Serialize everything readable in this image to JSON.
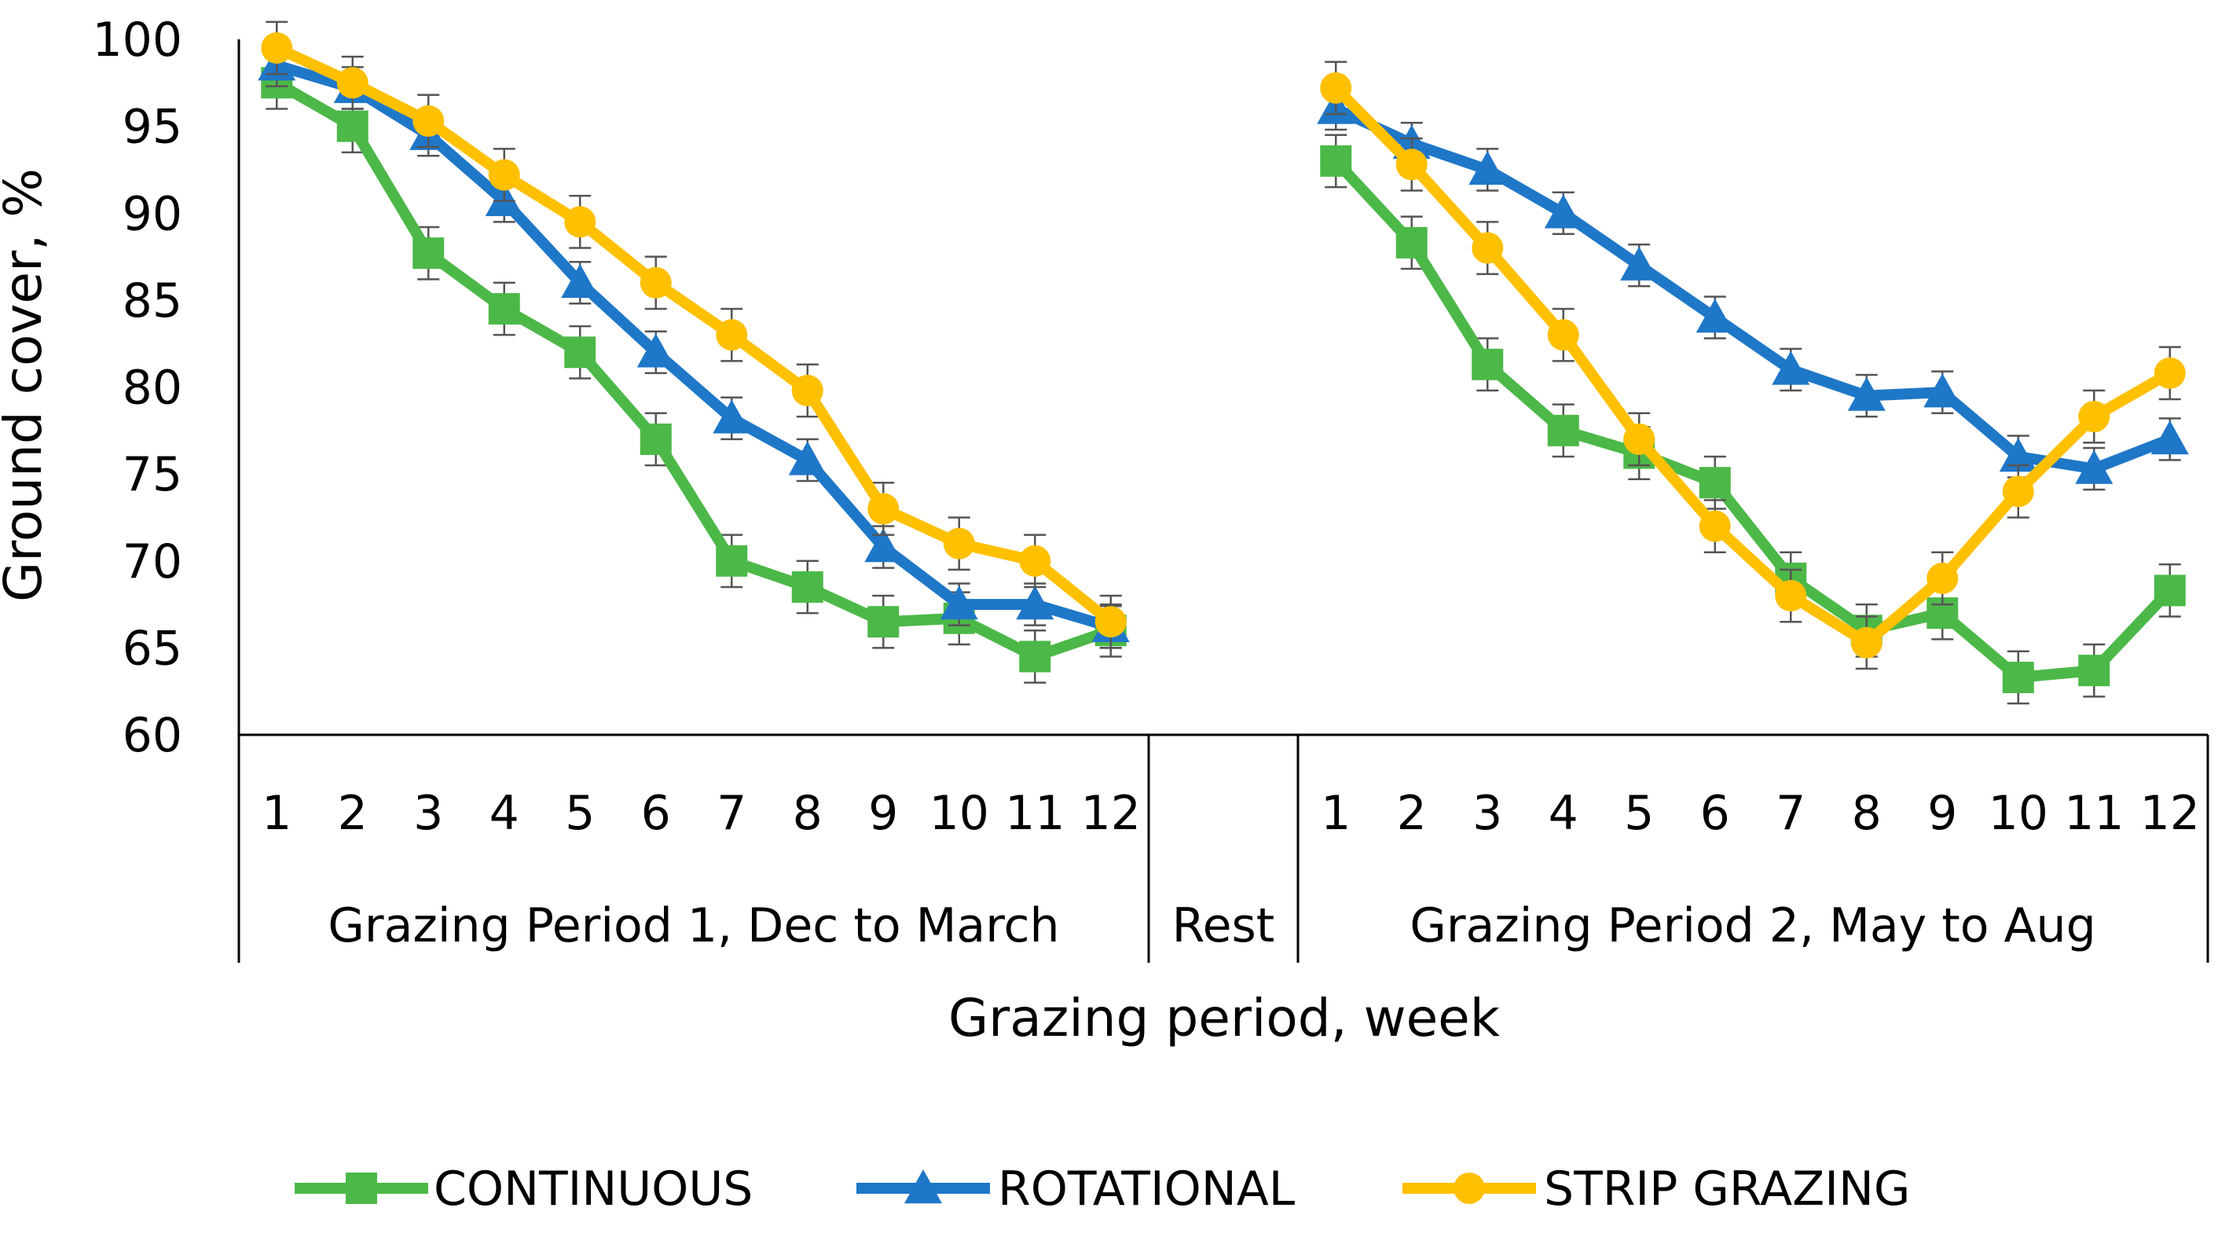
{
  "chart_data": {
    "type": "line",
    "ylabel": "Ground cover, %",
    "xlabel": "Grazing period, week",
    "ylim": [
      60,
      100
    ],
    "yticks": [
      60,
      65,
      70,
      75,
      80,
      85,
      90,
      95,
      100
    ],
    "groups": [
      {
        "name": "Grazing Period 1, Dec to March",
        "weeks": [
          "1",
          "2",
          "3",
          "4",
          "5",
          "6",
          "7",
          "8",
          "9",
          "10",
          "11",
          "12"
        ]
      },
      {
        "name": "Rest",
        "weeks": []
      },
      {
        "name": "Grazing Period 2, May to Aug",
        "weeks": [
          "1",
          "2",
          "3",
          "4",
          "5",
          "6",
          "7",
          "8",
          "9",
          "10",
          "11",
          "12"
        ]
      }
    ],
    "series": [
      {
        "name": "CONTINUOUS",
        "color": "#4CB848",
        "marker": "square",
        "period1": [
          97.5,
          95,
          87.7,
          84.5,
          82,
          77,
          70,
          68.5,
          66.5,
          66.7,
          64.5,
          66
        ],
        "period2": [
          93,
          88.3,
          81.3,
          77.5,
          76.2,
          74.5,
          69,
          66,
          67,
          63.3,
          63.7,
          68.3
        ],
        "error": 1.5
      },
      {
        "name": "ROTATIONAL",
        "color": "#1F77C8",
        "marker": "triangle",
        "period1": [
          98.5,
          97.2,
          94.5,
          90.7,
          86,
          82,
          78.2,
          75.8,
          70.8,
          67.5,
          67.5,
          66.2
        ],
        "period2": [
          96,
          94,
          92.5,
          90,
          87,
          84,
          81,
          79.5,
          79.7,
          76,
          75.3,
          77
        ],
        "error": 1.2
      },
      {
        "name": "STRIP GRAZING",
        "color": "#FFC000",
        "marker": "circle",
        "period1": [
          99.5,
          97.5,
          95.3,
          92.2,
          89.5,
          86,
          83,
          79.8,
          73,
          71,
          70,
          66.5
        ],
        "period2": [
          97.2,
          92.8,
          88,
          83,
          77,
          72,
          68,
          65.3,
          69,
          74,
          78.3,
          80.8
        ],
        "error": 1.5
      }
    ]
  }
}
